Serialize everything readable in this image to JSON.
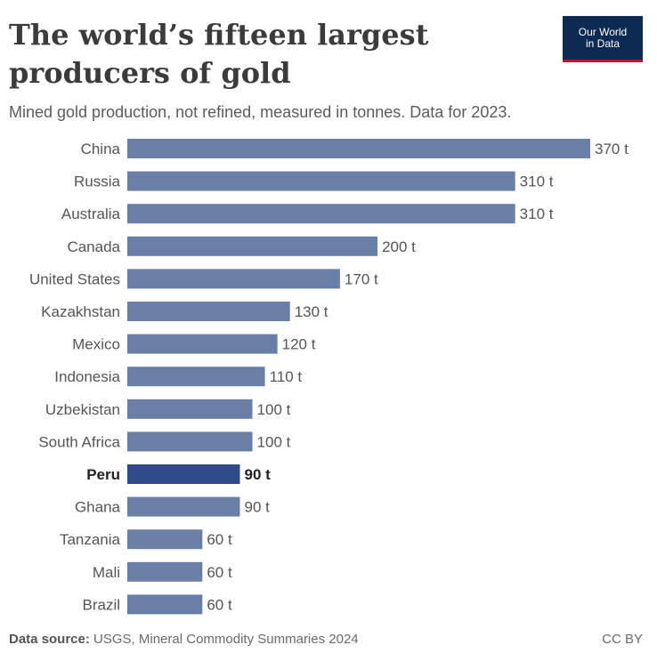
{
  "header": {
    "title_line1": "The world’s fifteen largest",
    "title_line2": "producers of gold",
    "subtitle": "Mined gold production, not refined, measured in tonnes. Data for 2023.",
    "logo_line1": "Our World",
    "logo_line2": "in Data"
  },
  "footer": {
    "source_label": "Data source:",
    "source_text": "USGS, Mineral Commodity Summaries 2024",
    "license": "CC BY"
  },
  "colors": {
    "bar": "#6a7fa8",
    "bar_highlight": "#2f4b8a",
    "logo_bg": "#0d2a52",
    "logo_accent": "#c8102e"
  },
  "chart_data": {
    "type": "bar",
    "orientation": "horizontal",
    "unit_suffix": " t",
    "categories": [
      "China",
      "Russia",
      "Australia",
      "Canada",
      "United States",
      "Kazakhstan",
      "Mexico",
      "Indonesia",
      "Uzbekistan",
      "South Africa",
      "Peru",
      "Ghana",
      "Tanzania",
      "Mali",
      "Brazil"
    ],
    "values": [
      370,
      310,
      310,
      200,
      170,
      130,
      120,
      110,
      100,
      100,
      90,
      90,
      60,
      60,
      60
    ],
    "highlight": "Peru",
    "title": "The world’s fifteen largest producers of gold",
    "subtitle": "Mined gold production, not refined, measured in tonnes. Data for 2023.",
    "xlim": [
      0,
      370
    ],
    "grid": false,
    "legend": "none"
  }
}
